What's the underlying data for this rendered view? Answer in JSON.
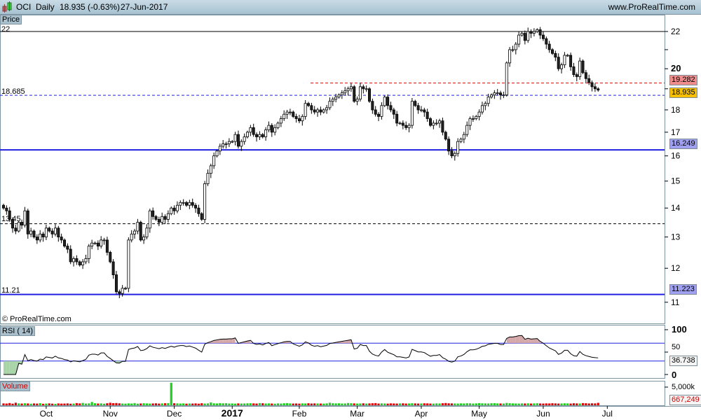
{
  "header": {
    "symbol": "OCI",
    "period": "Daily",
    "quote": "18.935 (-0.63%)",
    "date": "27-Jun-2017",
    "site": "www.ProRealTime.com",
    "logo_icon": "candlestick-icon"
  },
  "price_panel": {
    "label": "Price",
    "copyright": "© ProRealTime.com",
    "left_labels": {
      "top": "22",
      "level_blue": "18.685",
      "level_black": "13.45",
      "level_low": "11.21"
    },
    "right_badges": {
      "red": "19.282",
      "last": "18.935",
      "support_high": "16.249",
      "support_low": "11.223"
    },
    "levels": {
      "resistance_dashed": 19.282,
      "blue_dashed": 18.685,
      "blue_solid_high": 16.249,
      "black_dashed": 13.45,
      "blue_solid_low": 11.223,
      "top_line": 22
    },
    "colors": {
      "red_badge": "#f08c8c",
      "last_badge": "#f6c000",
      "support_badge": "#a0a0f0",
      "blue_line": "#2020e0",
      "red_line": "#e00000"
    }
  },
  "rsi_panel": {
    "label": "RSI ( 14)",
    "ticks": [
      "100",
      "50",
      "0"
    ],
    "overbought": 70,
    "oversold": 30,
    "value": "36.738"
  },
  "volume_panel": {
    "label": "Volume",
    "tick": "5,000k",
    "value": "667,249"
  },
  "chart_data": {
    "type": "candlestick",
    "title": "OCI Daily",
    "scale": "log",
    "ylim": [
      10.7,
      22.5
    ],
    "y_ticks": [
      {
        "v": 22,
        "label": "22"
      },
      {
        "v": 21,
        "label": ""
      },
      {
        "v": 20,
        "label": "20",
        "bold": true
      },
      {
        "v": 19,
        "label": ""
      },
      {
        "v": 18,
        "label": "18"
      },
      {
        "v": 17,
        "label": "17"
      },
      {
        "v": 16,
        "label": "16"
      },
      {
        "v": 15,
        "label": "15"
      },
      {
        "v": 14,
        "label": "14"
      },
      {
        "v": 13,
        "label": "13"
      },
      {
        "v": 12,
        "label": "12"
      },
      {
        "v": 11,
        "label": "11"
      }
    ],
    "x_ticks": [
      {
        "bar": 14,
        "label": "Oct"
      },
      {
        "bar": 35,
        "label": "Nov"
      },
      {
        "bar": 56,
        "label": "Dec"
      },
      {
        "bar": 75,
        "label": "2017",
        "bold": true
      },
      {
        "bar": 97,
        "label": "Feb"
      },
      {
        "bar": 116,
        "label": "Mar"
      },
      {
        "bar": 137,
        "label": "Apr"
      },
      {
        "bar": 156,
        "label": "May"
      },
      {
        "bar": 177,
        "label": "Jun"
      },
      {
        "bar": 198,
        "label": "Jul"
      }
    ],
    "first_open": 14.1,
    "closes": [
      14.0,
      13.9,
      13.6,
      13.3,
      13.2,
      13.5,
      13.4,
      13.9,
      13.1,
      13.2,
      13.0,
      12.9,
      13.1,
      13.0,
      13.3,
      13.2,
      13.1,
      13.3,
      13.0,
      12.9,
      12.7,
      12.6,
      12.2,
      12.3,
      12.2,
      12.1,
      12.2,
      12.3,
      12.7,
      12.8,
      12.8,
      12.7,
      12.9,
      12.9,
      12.5,
      12.2,
      11.8,
      11.3,
      11.25,
      11.4,
      11.4,
      12.9,
      13.1,
      13.2,
      13.5,
      12.9,
      13.0,
      13.3,
      13.9,
      13.7,
      13.6,
      13.5,
      13.7,
      13.6,
      13.8,
      14.0,
      13.9,
      14.1,
      14.2,
      14.2,
      14.1,
      14.2,
      14.1,
      14.0,
      13.8,
      13.6,
      14.9,
      15.3,
      15.6,
      16.0,
      16.2,
      16.4,
      16.5,
      16.5,
      16.6,
      16.6,
      16.9,
      16.4,
      16.6,
      16.8,
      17.0,
      17.2,
      16.9,
      16.8,
      16.9,
      16.8,
      17.1,
      17.3,
      17.0,
      17.2,
      17.4,
      17.6,
      17.8,
      17.9,
      17.9,
      17.7,
      17.6,
      17.5,
      17.7,
      18.3,
      18.2,
      18.0,
      17.9,
      18.0,
      17.9,
      18.0,
      18.1,
      18.4,
      18.5,
      18.6,
      18.7,
      18.8,
      18.9,
      19.0,
      19.1,
      18.4,
      18.5,
      19.1,
      19.0,
      19.0,
      18.4,
      18.0,
      17.8,
      17.7,
      18.2,
      18.6,
      18.2,
      18.0,
      17.8,
      17.4,
      17.4,
      17.3,
      17.2,
      17.3,
      18.4,
      18.2,
      18.0,
      18.0,
      17.9,
      17.6,
      17.3,
      17.4,
      17.4,
      17.5,
      17.0,
      16.7,
      16.2,
      16.0,
      16.1,
      16.6,
      16.7,
      16.9,
      17.3,
      17.6,
      17.6,
      17.7,
      17.9,
      18.2,
      18.3,
      18.6,
      18.7,
      18.8,
      18.8,
      18.7,
      18.7,
      20.3,
      21.0,
      21.0,
      21.3,
      21.8,
      21.9,
      21.5,
      22.0,
      21.9,
      22.0,
      22.1,
      21.8,
      21.6,
      21.3,
      21.0,
      20.8,
      20.6,
      20.0,
      20.2,
      20.7,
      20.7,
      20.1,
      19.7,
      19.6,
      20.4,
      19.8,
      19.5,
      19.3,
      19.1,
      19.0,
      18.935
    ],
    "volume_k": [
      520,
      480,
      610,
      450,
      700,
      520,
      480,
      560,
      500,
      430,
      510,
      470,
      590,
      420,
      480,
      520,
      450,
      400,
      510,
      460,
      480,
      520,
      440,
      470,
      600,
      520,
      650,
      480,
      520,
      900,
      560,
      480,
      520,
      440,
      560,
      700,
      580,
      620,
      540,
      480,
      460,
      520,
      480,
      610,
      450,
      500,
      560,
      520,
      480,
      500,
      540,
      470,
      520,
      560,
      600,
      6200,
      560,
      520,
      480,
      520,
      450,
      500,
      480,
      520,
      440,
      560,
      480,
      520,
      780,
      540,
      500,
      600,
      540,
      560,
      480,
      500,
      460,
      520,
      480,
      500,
      540,
      560,
      520,
      480,
      600,
      560,
      500,
      520,
      480,
      440,
      520,
      480,
      560,
      600,
      520,
      480,
      500,
      460,
      520,
      500,
      560,
      480,
      520,
      500,
      480,
      460,
      520,
      700,
      560,
      520,
      540,
      480,
      500,
      620,
      560,
      520,
      480,
      500,
      540,
      480,
      520,
      560,
      600,
      480,
      520,
      500,
      460,
      520,
      500,
      480,
      520,
      540,
      480,
      500,
      560,
      520,
      480,
      500,
      540,
      520,
      480,
      460,
      520,
      500,
      560,
      620,
      540,
      520,
      500,
      480,
      520,
      500,
      560,
      540,
      480,
      520,
      600,
      540,
      520,
      500,
      560,
      580,
      520,
      500,
      480,
      640,
      560,
      520,
      500,
      480,
      520,
      500,
      540,
      480,
      520,
      560,
      500,
      480,
      520,
      500,
      560,
      520,
      480,
      500,
      540,
      520,
      480,
      560,
      520,
      500,
      600,
      560,
      500,
      540,
      520,
      667.249
    ]
  }
}
